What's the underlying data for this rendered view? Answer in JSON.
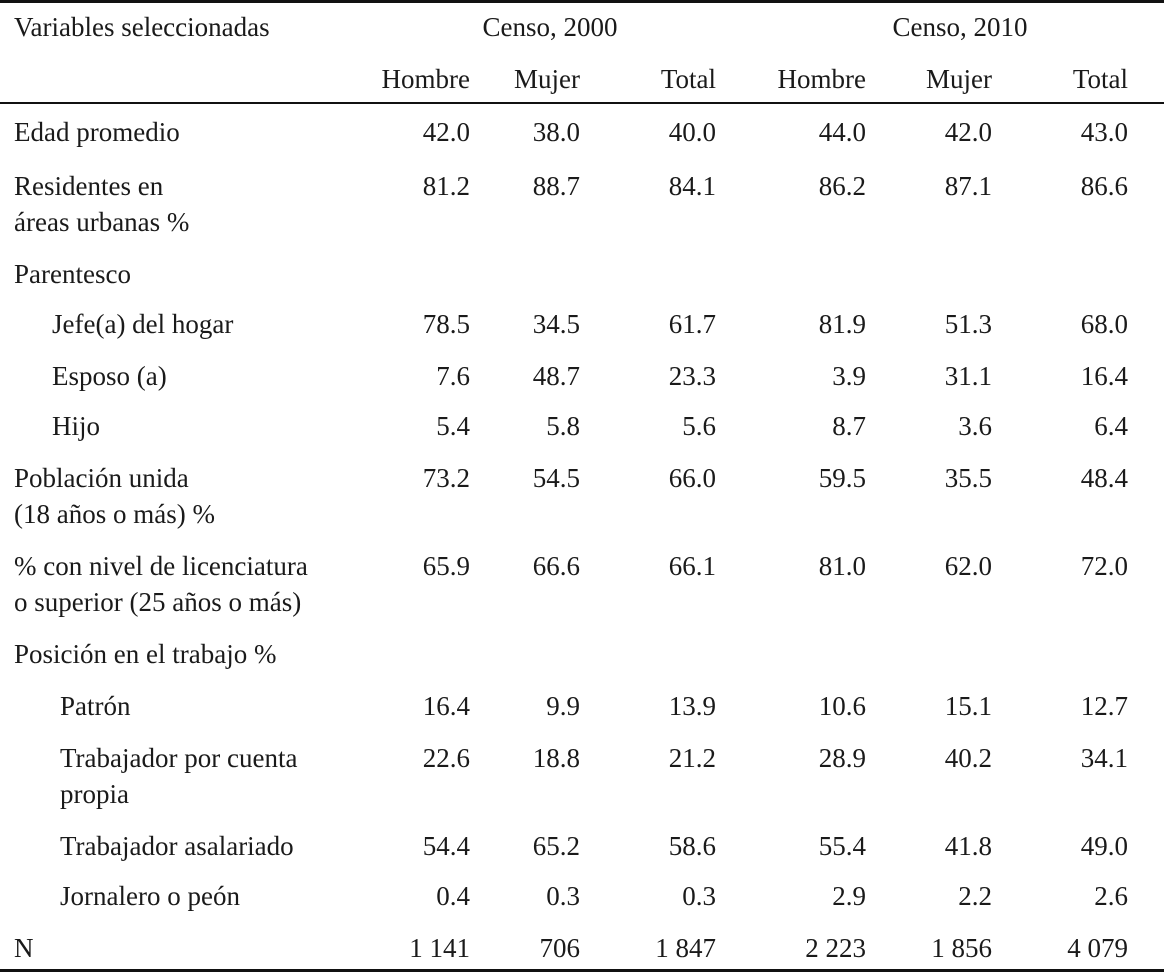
{
  "header": {
    "variables": "Variables seleccionadas",
    "census_2000": "Censo, 2000",
    "census_2010": "Censo, 2010",
    "sub": [
      "Hombre",
      "Mujer",
      "Total",
      "Hombre",
      "Mujer",
      "Total"
    ]
  },
  "rows": [
    {
      "label": [
        "Edad promedio"
      ],
      "indent": 0,
      "values": [
        "42.0",
        "38.0",
        "40.0",
        "44.0",
        "42.0",
        "43.0"
      ]
    },
    {
      "label": [
        "Residentes en",
        "áreas urbanas %"
      ],
      "indent": 0,
      "values": [
        "81.2",
        "88.7",
        "84.1",
        "86.2",
        "87.1",
        "86.6"
      ]
    },
    {
      "label": [
        "Parentesco"
      ],
      "indent": 0,
      "values": [
        "",
        "",
        "",
        "",
        "",
        ""
      ]
    },
    {
      "label": [
        "Jefe(a) del hogar"
      ],
      "indent": 1,
      "values": [
        "78.5",
        "34.5",
        "61.7",
        "81.9",
        "51.3",
        "68.0"
      ]
    },
    {
      "label": [
        "Esposo (a)"
      ],
      "indent": 1,
      "values": [
        "7.6",
        "48.7",
        "23.3",
        "3.9",
        "31.1",
        "16.4"
      ]
    },
    {
      "label": [
        "Hijo"
      ],
      "indent": 1,
      "values": [
        "5.4",
        "5.8",
        "5.6",
        "8.7",
        "3.6",
        "6.4"
      ]
    },
    {
      "label": [
        "Población unida",
        "(18 años o más) %"
      ],
      "indent": 0,
      "values": [
        "73.2",
        "54.5",
        "66.0",
        "59.5",
        "35.5",
        "48.4"
      ]
    },
    {
      "label": [
        "% con nivel de licenciatura",
        "o superior (25 años o más)"
      ],
      "indent": 0,
      "values": [
        "65.9",
        "66.6",
        "66.1",
        "81.0",
        "62.0",
        "72.0"
      ]
    },
    {
      "label": [
        "Posición en el trabajo %"
      ],
      "indent": 0,
      "values": [
        "",
        "",
        "",
        "",
        "",
        ""
      ]
    },
    {
      "label": [
        "Patrón"
      ],
      "indent": 2,
      "values": [
        "16.4",
        "9.9",
        "13.9",
        "10.6",
        "15.1",
        "12.7"
      ]
    },
    {
      "label": [
        "Trabajador por cuenta",
        "propia"
      ],
      "indent": 2,
      "values": [
        "22.6",
        "18.8",
        "21.2",
        "28.9",
        "40.2",
        "34.1"
      ]
    },
    {
      "label": [
        "Trabajador asalariado"
      ],
      "indent": 2,
      "values": [
        "54.4",
        "65.2",
        "58.6",
        "55.4",
        "41.8",
        "49.0"
      ]
    },
    {
      "label": [
        "Jornalero o peón"
      ],
      "indent": 2,
      "values": [
        "0.4",
        "0.3",
        "0.3",
        "2.9",
        "2.2",
        "2.6"
      ]
    },
    {
      "label": [
        "N"
      ],
      "indent": 0,
      "values": [
        "1 141",
        "706",
        "1 847",
        "2 223",
        "1 856",
        "4 079"
      ]
    }
  ]
}
